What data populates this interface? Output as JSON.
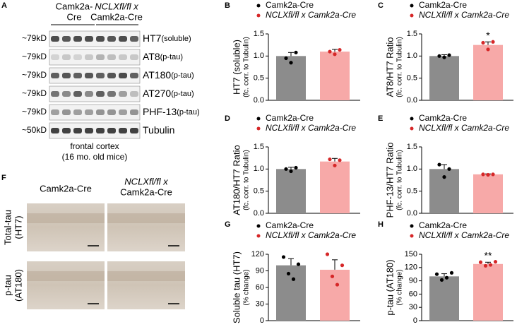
{
  "panel_letters": [
    "A",
    "B",
    "C",
    "D",
    "E",
    "F",
    "G",
    "H"
  ],
  "blot": {
    "groups": [
      [
        "Camk2a-",
        "Cre"
      ],
      [
        "NCLXfl/fl x",
        "Camk2a-Cre"
      ]
    ],
    "rows": [
      {
        "size": "~79kD",
        "label": "HT7",
        "note": "(soluble)"
      },
      {
        "size": "~79kD",
        "label": "AT8",
        "note": "(p-tau)"
      },
      {
        "size": "~79kD",
        "label": "AT180",
        "note": "(p-tau)"
      },
      {
        "size": "~79kD",
        "label": "AT270",
        "note": "(p-tau)"
      },
      {
        "size": "~79kD",
        "label": "PHF-13",
        "note": "(p-tau)"
      },
      {
        "size": "~50kD",
        "label": "Tubulin"
      }
    ],
    "caption": [
      "frontal cortex",
      "(16 mo. old mice)"
    ]
  },
  "histology": {
    "columns": [
      [
        "Camk2a-Cre"
      ],
      [
        "NCLXfl/fl x",
        "Camk2a-Cre"
      ]
    ],
    "rows": [
      [
        "Total-tau",
        "(HT7)"
      ],
      [
        "p-tau",
        "(AT180)"
      ]
    ]
  },
  "chart_data": [
    {
      "type": "bar",
      "ylabel": [
        "HT7 (soluble)",
        "(fc. corr. to Tubulin)"
      ],
      "ylim": [
        0,
        1.5
      ],
      "yticks": [
        {
          "value": 0,
          "label": "0.0"
        },
        {
          "value": 0.5,
          "label": "0.5"
        },
        {
          "value": 1,
          "label": "1.0"
        },
        {
          "value": 1.5,
          "label": "1.5"
        }
      ],
      "series": [
        {
          "name": "Camk2a-Cre",
          "color": "#8c8c8c",
          "marker_color": "#000000",
          "values": [
            1.0
          ],
          "errors": [
            0.08
          ],
          "points": [
            0.95,
            0.85,
            1.08
          ]
        },
        {
          "name": "NCLXfl/fl x Camk2a-Cre",
          "color": "#f7a9a8",
          "marker_color": "#d62728",
          "values": [
            1.1
          ],
          "errors": [
            0.05
          ],
          "points": [
            1.1,
            1.04,
            1.14
          ]
        }
      ]
    },
    {
      "type": "bar",
      "ylabel": [
        "AT8/HT7 Ratio",
        "(fc. corr. to Tubulin)"
      ],
      "ylim": [
        0,
        1.5
      ],
      "yticks": [
        {
          "value": 0,
          "label": "0.0"
        },
        {
          "value": 0.5,
          "label": "0.5"
        },
        {
          "value": 1,
          "label": "1.0"
        },
        {
          "value": 1.5,
          "label": "1.5"
        }
      ],
      "annotation": "*",
      "series": [
        {
          "name": "Camk2a-Cre",
          "color": "#8c8c8c",
          "marker_color": "#000000",
          "values": [
            1.0
          ],
          "errors": [
            0.03
          ],
          "points": [
            1.0,
            0.97,
            1.02
          ]
        },
        {
          "name": "NCLXfl/fl x Camk2a-Cre",
          "color": "#f7a9a8",
          "marker_color": "#d62728",
          "values": [
            1.25
          ],
          "errors": [
            0.07
          ],
          "points": [
            1.3,
            1.15,
            1.32
          ]
        }
      ]
    },
    {
      "type": "bar",
      "ylabel": [
        "AT180/HT7 Ratio",
        "(fc. corr. to Tubulin)"
      ],
      "ylim": [
        0,
        1.5
      ],
      "yticks": [
        {
          "value": 0,
          "label": "0.0"
        },
        {
          "value": 0.5,
          "label": "0.5"
        },
        {
          "value": 1,
          "label": "1.0"
        },
        {
          "value": 1.5,
          "label": "1.5"
        }
      ],
      "series": [
        {
          "name": "Camk2a-Cre",
          "color": "#8c8c8c",
          "marker_color": "#000000",
          "values": [
            1.0
          ],
          "errors": [
            0.04
          ],
          "points": [
            1.0,
            0.95,
            1.03
          ]
        },
        {
          "name": "NCLXfl/fl x Camk2a-Cre",
          "color": "#f7a9a8",
          "marker_color": "#d62728",
          "values": [
            1.17
          ],
          "errors": [
            0.07
          ],
          "points": [
            1.22,
            1.08,
            1.2
          ]
        }
      ]
    },
    {
      "type": "bar",
      "ylabel": [
        "PHF-13/HT7 Ratio",
        "(fc. corr. to Tubulin)"
      ],
      "ylim": [
        0,
        1.5
      ],
      "yticks": [
        {
          "value": 0,
          "label": "0.0"
        },
        {
          "value": 0.5,
          "label": "0.5"
        },
        {
          "value": 1,
          "label": "1.0"
        },
        {
          "value": 1.5,
          "label": "1.5"
        }
      ],
      "series": [
        {
          "name": "Camk2a-Cre",
          "color": "#8c8c8c",
          "marker_color": "#000000",
          "values": [
            1.0
          ],
          "errors": [
            0.1
          ],
          "points": [
            1.1,
            0.82,
            1.0
          ]
        },
        {
          "name": "NCLXfl/fl x Camk2a-Cre",
          "color": "#f7a9a8",
          "marker_color": "#d62728",
          "values": [
            0.88
          ],
          "errors": [
            0.01
          ],
          "points": [
            0.88,
            0.87,
            0.88
          ]
        }
      ]
    },
    {
      "type": "bar",
      "ylabel": [
        "Soluble tau (HT7)",
        "(% change)"
      ],
      "ylim": [
        0,
        120
      ],
      "yticks": [
        0,
        30,
        60,
        90,
        120
      ],
      "series": [
        {
          "name": "Camk2a-Cre",
          "color": "#8c8c8c",
          "marker_color": "#000000",
          "values": [
            100
          ],
          "errors": [
            12
          ],
          "points": [
            115,
            85,
            75,
            102
          ]
        },
        {
          "name": "NCLXfl/fl x Camk2a-Cre",
          "color": "#f7a9a8",
          "marker_color": "#d62728",
          "values": [
            92
          ],
          "errors": [
            18
          ],
          "points": [
            120,
            80,
            65,
            100
          ]
        }
      ]
    },
    {
      "type": "bar",
      "ylabel": [
        "p-tau (AT180)",
        "(% change)"
      ],
      "ylim": [
        0,
        150
      ],
      "yticks": [
        0,
        30,
        60,
        90,
        120,
        150
      ],
      "annotation": "**",
      "series": [
        {
          "name": "Camk2a-Cre",
          "color": "#8c8c8c",
          "marker_color": "#000000",
          "values": [
            100
          ],
          "errors": [
            6
          ],
          "points": [
            105,
            92,
            97,
            108
          ]
        },
        {
          "name": "NCLXfl/fl x Camk2a-Cre",
          "color": "#f7a9a8",
          "marker_color": "#d62728",
          "values": [
            128
          ],
          "errors": [
            4
          ],
          "points": [
            132,
            124,
            126,
            133
          ]
        }
      ]
    }
  ]
}
